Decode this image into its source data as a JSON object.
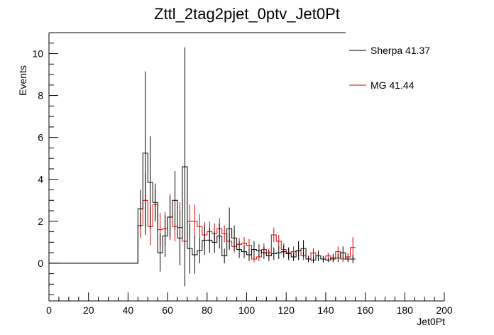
{
  "chart_data": {
    "type": "line",
    "title": "Zttl_2tag2pjet_0ptv_Jet0Pt",
    "xlabel": "Jet0Pt",
    "ylabel": "Events",
    "xlim": [
      0,
      200
    ],
    "ylim": [
      -1.8,
      11
    ],
    "x_ticks": [
      0,
      20,
      40,
      60,
      80,
      100,
      120,
      140,
      160,
      180,
      200
    ],
    "y_ticks": [
      0,
      2,
      4,
      6,
      8,
      10
    ],
    "grid": false,
    "legend_position": "top-right",
    "bin_width": 2.5,
    "bin_start": 45,
    "series": [
      {
        "name": "Sherpa 41.37",
        "legend_label": "Sherpa 41.37",
        "color": "#000000",
        "values": [
          2.6,
          5.25,
          3.85,
          2.9,
          0.5,
          1.3,
          2.2,
          3.0,
          1.2,
          4.6,
          0.7,
          0.4,
          0.6,
          1.1,
          1.1,
          1.0,
          1.3,
          0.35,
          1.65,
          1.2,
          0.65,
          0.55,
          0.4,
          0.65,
          0.6,
          0.5,
          0.35,
          0.45,
          0.5,
          0.55,
          0.45,
          0.3,
          0.6,
          0.7,
          0.2,
          0.15,
          0.35,
          0.2,
          0.15,
          0.25,
          0.25,
          0.5,
          0.2,
          0.2
        ],
        "errors": [
          0.9,
          3.9,
          2.2,
          0.9,
          0.9,
          1.0,
          1.0,
          1.4,
          1.3,
          5.7,
          1.2,
          0.9,
          0.6,
          0.7,
          0.6,
          0.5,
          0.6,
          0.35,
          1.0,
          0.6,
          0.4,
          0.3,
          0.3,
          0.4,
          0.3,
          0.3,
          0.25,
          0.3,
          0.3,
          0.3,
          0.3,
          0.2,
          0.45,
          0.4,
          0.15,
          0.15,
          0.25,
          0.15,
          0.1,
          0.2,
          0.2,
          0.3,
          0.15,
          0.2
        ]
      },
      {
        "name": "MG 41.44",
        "legend_label": "MG 41.44",
        "color": "#e00000",
        "values": [
          1.8,
          3.0,
          1.75,
          2.8,
          1.6,
          1.65,
          2.2,
          1.75,
          1.7,
          1.05,
          2.0,
          2.0,
          1.75,
          1.35,
          1.5,
          1.4,
          1.65,
          1.4,
          1.05,
          0.8,
          0.9,
          0.95,
          0.85,
          0.2,
          0.3,
          0.65,
          0.5,
          1.35,
          1.05,
          0.65,
          0.5,
          0.55,
          0.6,
          0.35,
          0.2,
          0.5,
          0.35,
          0.2,
          0.35,
          0.2,
          0.55,
          0.2,
          0.3,
          0.75
        ],
        "errors": [
          0.6,
          1.3,
          0.9,
          0.7,
          0.8,
          0.8,
          1.1,
          0.7,
          1.2,
          0.8,
          0.8,
          0.8,
          0.6,
          0.6,
          0.5,
          0.5,
          0.5,
          0.4,
          0.4,
          0.3,
          0.3,
          0.3,
          0.3,
          0.15,
          0.2,
          0.3,
          0.2,
          0.35,
          0.3,
          0.3,
          0.25,
          0.25,
          0.25,
          0.2,
          0.15,
          0.2,
          0.2,
          0.15,
          0.15,
          0.15,
          0.25,
          0.15,
          0.2,
          0.5
        ]
      }
    ]
  }
}
